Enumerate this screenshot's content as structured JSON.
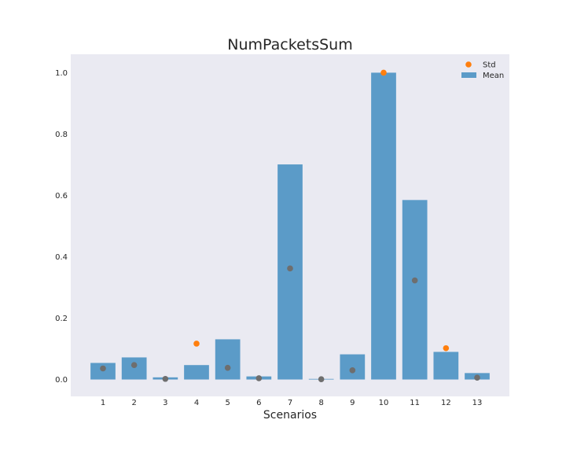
{
  "chart_data": {
    "type": "bar",
    "title": "NumPacketsSum",
    "xlabel": "Scenarios",
    "ylabel": "",
    "categories": [
      "1",
      "2",
      "3",
      "4",
      "5",
      "6",
      "7",
      "8",
      "9",
      "10",
      "11",
      "12",
      "13"
    ],
    "series": [
      {
        "name": "Mean",
        "kind": "bar",
        "color": "#5b9bc8",
        "values": [
          0.054,
          0.072,
          0.007,
          0.047,
          0.131,
          0.01,
          0.701,
          0.002,
          0.082,
          1.0,
          0.585,
          0.09,
          0.021
        ]
      },
      {
        "name": "Std",
        "kind": "scatter",
        "color": "#ff7f0e",
        "values": [
          0.036,
          0.047,
          0.002,
          0.117,
          0.038,
          0.004,
          0.362,
          0.001,
          0.03,
          1.0,
          0.323,
          0.102,
          0.006
        ]
      }
    ],
    "ylim": [
      -0.055,
      1.06
    ],
    "yticks": [
      0.0,
      0.2,
      0.4,
      0.6,
      0.8,
      1.0
    ],
    "ytick_labels": [
      "0.0",
      "0.2",
      "0.4",
      "0.6",
      "0.8",
      "1.0"
    ],
    "grid": false,
    "legend_position": "top-right",
    "background_color": "#eaeaf2"
  }
}
